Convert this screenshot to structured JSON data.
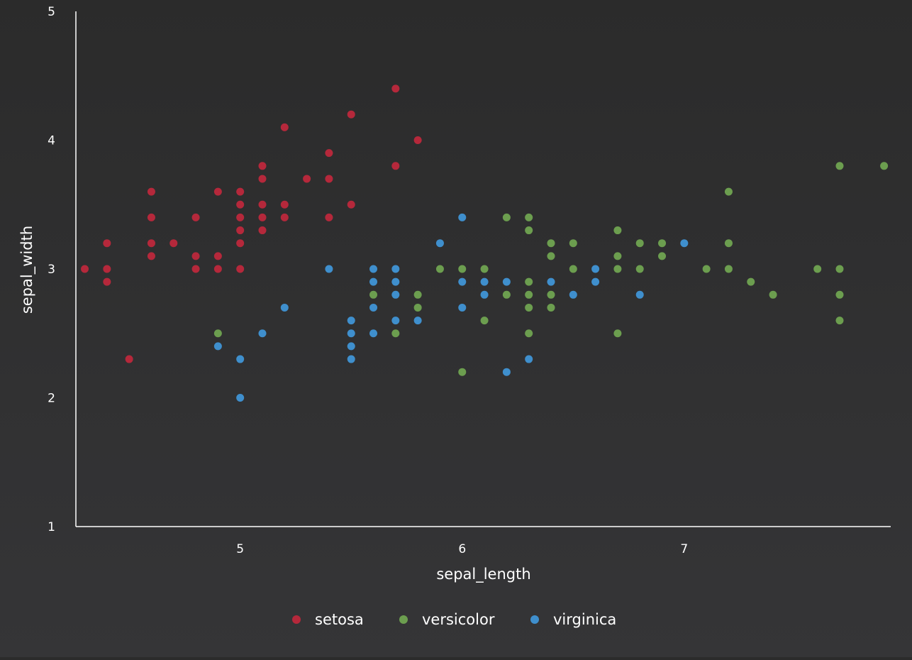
{
  "chart_data": {
    "type": "scatter",
    "title": "",
    "xlabel": "sepal_length",
    "ylabel": "sepal_width",
    "xlim": [
      4.26,
      7.93
    ],
    "ylim": [
      1,
      5
    ],
    "x_ticks": [
      5,
      6,
      7
    ],
    "y_ticks": [
      1,
      2,
      3,
      4,
      5
    ],
    "grid": false,
    "legend_position": "bottom-center",
    "series": [
      {
        "name": "setosa",
        "color": "#b5283b",
        "points": [
          [
            4.3,
            3.0
          ],
          [
            4.4,
            3.2
          ],
          [
            4.4,
            3.0
          ],
          [
            4.4,
            2.9
          ],
          [
            4.5,
            2.3
          ],
          [
            4.6,
            3.6
          ],
          [
            4.6,
            3.4
          ],
          [
            4.6,
            3.2
          ],
          [
            4.6,
            3.1
          ],
          [
            4.7,
            3.2
          ],
          [
            4.8,
            3.4
          ],
          [
            4.8,
            3.1
          ],
          [
            4.8,
            3.0
          ],
          [
            4.9,
            3.6
          ],
          [
            4.9,
            3.1
          ],
          [
            4.9,
            3.0
          ],
          [
            5.0,
            3.6
          ],
          [
            5.0,
            3.5
          ],
          [
            5.0,
            3.4
          ],
          [
            5.0,
            3.3
          ],
          [
            5.0,
            3.2
          ],
          [
            5.0,
            3.0
          ],
          [
            5.1,
            3.8
          ],
          [
            5.1,
            3.7
          ],
          [
            5.1,
            3.5
          ],
          [
            5.1,
            3.4
          ],
          [
            5.1,
            3.3
          ],
          [
            5.2,
            4.1
          ],
          [
            5.2,
            3.5
          ],
          [
            5.2,
            3.4
          ],
          [
            5.3,
            3.7
          ],
          [
            5.4,
            3.9
          ],
          [
            5.4,
            3.7
          ],
          [
            5.4,
            3.4
          ],
          [
            5.5,
            4.2
          ],
          [
            5.5,
            3.5
          ],
          [
            5.7,
            4.4
          ],
          [
            5.7,
            3.8
          ],
          [
            5.8,
            4.0
          ]
        ]
      },
      {
        "name": "versicolor",
        "color": "#6c9e4f",
        "points": [
          [
            4.9,
            2.5
          ],
          [
            5.6,
            2.8
          ],
          [
            5.7,
            2.5
          ],
          [
            5.8,
            2.8
          ],
          [
            5.8,
            2.7
          ],
          [
            5.9,
            3.0
          ],
          [
            6.0,
            3.0
          ],
          [
            6.0,
            2.2
          ],
          [
            6.1,
            3.0
          ],
          [
            6.1,
            2.6
          ],
          [
            6.2,
            3.4
          ],
          [
            6.2,
            2.8
          ],
          [
            6.3,
            3.4
          ],
          [
            6.3,
            3.3
          ],
          [
            6.3,
            2.9
          ],
          [
            6.3,
            2.8
          ],
          [
            6.3,
            2.7
          ],
          [
            6.3,
            2.5
          ],
          [
            6.4,
            3.2
          ],
          [
            6.4,
            3.1
          ],
          [
            6.4,
            2.8
          ],
          [
            6.4,
            2.7
          ],
          [
            6.5,
            3.2
          ],
          [
            6.5,
            3.0
          ],
          [
            6.7,
            3.3
          ],
          [
            6.7,
            3.1
          ],
          [
            6.7,
            3.0
          ],
          [
            6.7,
            2.5
          ],
          [
            6.8,
            3.2
          ],
          [
            6.8,
            3.0
          ],
          [
            6.9,
            3.2
          ],
          [
            6.9,
            3.1
          ],
          [
            7.1,
            3.0
          ],
          [
            7.2,
            3.6
          ],
          [
            7.2,
            3.2
          ],
          [
            7.2,
            3.0
          ],
          [
            7.3,
            2.9
          ],
          [
            7.4,
            2.8
          ],
          [
            7.6,
            3.0
          ],
          [
            7.7,
            3.8
          ],
          [
            7.7,
            3.0
          ],
          [
            7.7,
            2.8
          ],
          [
            7.7,
            2.6
          ],
          [
            7.9,
            3.8
          ]
        ]
      },
      {
        "name": "virginica",
        "color": "#3f8fcd",
        "points": [
          [
            4.9,
            2.4
          ],
          [
            5.0,
            2.3
          ],
          [
            5.0,
            2.0
          ],
          [
            5.1,
            2.5
          ],
          [
            5.2,
            2.7
          ],
          [
            5.4,
            3.0
          ],
          [
            5.5,
            2.6
          ],
          [
            5.5,
            2.5
          ],
          [
            5.5,
            2.4
          ],
          [
            5.5,
            2.3
          ],
          [
            5.6,
            3.0
          ],
          [
            5.6,
            2.9
          ],
          [
            5.6,
            2.7
          ],
          [
            5.6,
            2.5
          ],
          [
            5.7,
            3.0
          ],
          [
            5.7,
            2.9
          ],
          [
            5.7,
            2.8
          ],
          [
            5.7,
            2.6
          ],
          [
            5.8,
            2.6
          ],
          [
            5.9,
            3.2
          ],
          [
            6.0,
            3.4
          ],
          [
            6.0,
            2.9
          ],
          [
            6.0,
            2.7
          ],
          [
            6.1,
            2.9
          ],
          [
            6.1,
            2.8
          ],
          [
            6.2,
            2.9
          ],
          [
            6.2,
            2.2
          ],
          [
            6.3,
            2.3
          ],
          [
            6.4,
            2.9
          ],
          [
            6.5,
            2.8
          ],
          [
            6.6,
            3.0
          ],
          [
            6.6,
            2.9
          ],
          [
            6.8,
            2.8
          ],
          [
            7.0,
            3.2
          ]
        ]
      }
    ]
  }
}
